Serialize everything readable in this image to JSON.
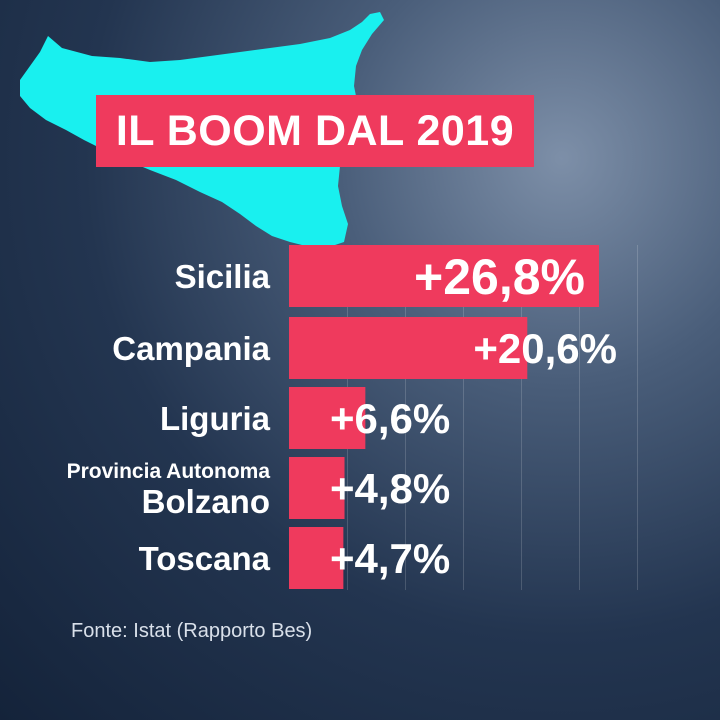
{
  "title": "IL BOOM DAL 2019",
  "source": "Fonte: Istat (Rapporto Bes)",
  "map_icon": "sicily-map-icon",
  "colors": {
    "bar": "#ef3a5d",
    "map": "#19f0ef",
    "text": "#ffffff"
  },
  "chart_data": {
    "type": "bar",
    "orientation": "horizontal",
    "categories": [
      "Sicilia",
      "Campania",
      "Liguria",
      "Provincia Autonoma Bolzano",
      "Toscana"
    ],
    "category_lines": [
      [
        "Sicilia"
      ],
      [
        "Campania"
      ],
      [
        "Liguria"
      ],
      [
        "Provincia Autonoma",
        "Bolzano"
      ],
      [
        "Toscana"
      ]
    ],
    "values": [
      26.8,
      20.6,
      6.6,
      4.8,
      4.7
    ],
    "value_labels": [
      "+26,8%",
      "+20,6%",
      "+6,6%",
      "+4,8%",
      "+4,7%"
    ],
    "unit": "%",
    "xlim": [
      0,
      27.5
    ],
    "grid": true
  }
}
